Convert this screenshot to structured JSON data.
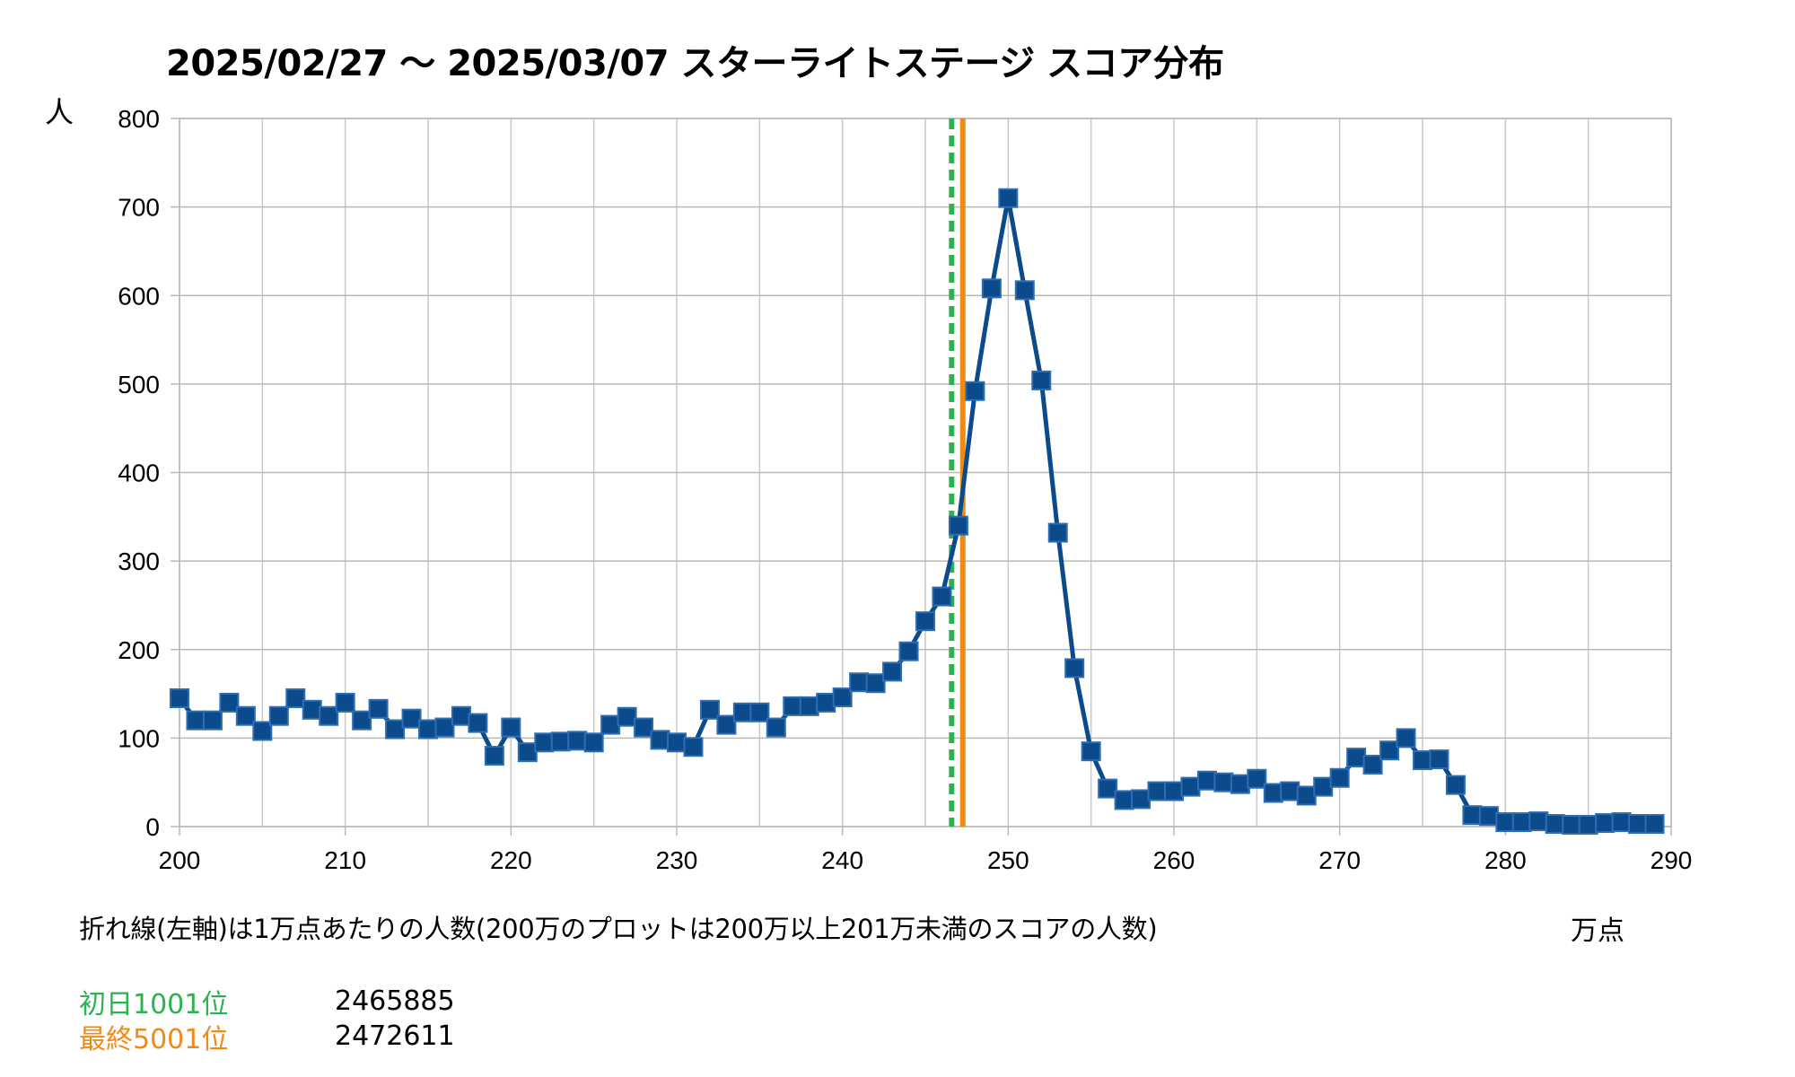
{
  "chart_data": {
    "type": "line",
    "title": "2025/02/27 〜 2025/03/07 スターライトステージ スコア分布",
    "ylabel": "人",
    "xlabel": "万点",
    "caption": "折れ線(左軸)は1万点あたりの人数(200万のプロットは200万以上201万未満のスコアの人数)",
    "xlim": [
      200,
      290
    ],
    "ylim": [
      0,
      800
    ],
    "x_ticks": [
      200,
      210,
      220,
      230,
      240,
      250,
      260,
      270,
      280,
      290
    ],
    "y_ticks": [
      0,
      100,
      200,
      300,
      400,
      500,
      600,
      700,
      800
    ],
    "grid": true,
    "series": [
      {
        "color": "#0b4a8b",
        "x": [
          200,
          201,
          202,
          203,
          204,
          205,
          206,
          207,
          208,
          209,
          210,
          211,
          212,
          213,
          214,
          215,
          216,
          217,
          218,
          219,
          220,
          221,
          222,
          223,
          224,
          225,
          226,
          227,
          228,
          229,
          230,
          231,
          232,
          233,
          234,
          235,
          236,
          237,
          238,
          239,
          240,
          241,
          242,
          243,
          244,
          245,
          246,
          247,
          248,
          249,
          250,
          251,
          252,
          253,
          254,
          255,
          256,
          257,
          258,
          259,
          260,
          261,
          262,
          263,
          264,
          265,
          266,
          267,
          268,
          269,
          270,
          271,
          272,
          273,
          274,
          275,
          276,
          277,
          278,
          279,
          280,
          281,
          282,
          283,
          284,
          285,
          286,
          287,
          288,
          289
        ],
        "values": [
          145,
          120,
          120,
          140,
          125,
          108,
          125,
          145,
          132,
          125,
          140,
          120,
          133,
          110,
          122,
          110,
          112,
          125,
          117,
          80,
          112,
          84,
          95,
          96,
          97,
          95,
          115,
          124,
          112,
          98,
          95,
          90,
          132,
          115,
          129,
          129,
          112,
          136,
          136,
          140,
          146,
          163,
          162,
          175,
          198,
          232,
          260,
          340,
          492,
          608,
          710,
          606,
          504,
          332,
          179,
          85,
          43,
          30,
          31,
          40,
          40,
          45,
          52,
          50,
          48,
          54,
          38,
          40,
          35,
          45,
          55,
          78,
          70,
          86,
          100,
          75,
          76,
          47,
          13,
          12,
          5,
          5,
          6,
          3,
          2,
          2,
          4,
          5,
          3,
          3
        ]
      }
    ],
    "reference_lines": [
      {
        "label": "初日1001位",
        "value_label": "2465885",
        "x": 246.5885,
        "color": "#2ab350",
        "style": "dotted"
      },
      {
        "label": "最終5001位",
        "value_label": "2472611",
        "x": 247.2611,
        "color": "#f08a16",
        "style": "solid"
      }
    ]
  }
}
